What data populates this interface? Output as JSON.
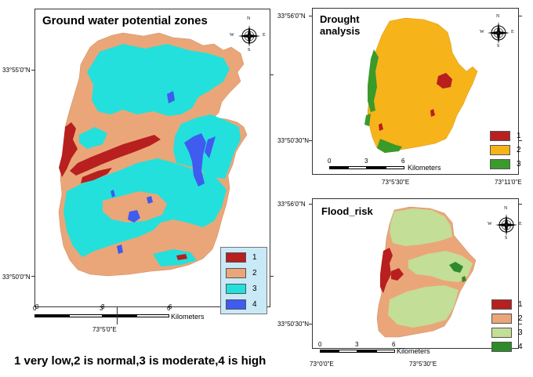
{
  "maps": {
    "groundwater": {
      "title": "Ground water potential zones",
      "coords": {
        "lat_top": "33°55'0\"N",
        "lat_bottom": "33°50'0\"N",
        "lon_bottom": "73°5'0\"E"
      },
      "scale": {
        "n0": "0",
        "n1": "3",
        "n2": "6",
        "unit": "Kilometers"
      },
      "compass": {
        "n": "N",
        "s": "S",
        "e": "E",
        "w": "W"
      },
      "legend": [
        {
          "label": "1",
          "color": "#b81f1f"
        },
        {
          "label": "2",
          "color": "#eaa678"
        },
        {
          "label": "3",
          "color": "#23e0dc"
        },
        {
          "label": "4",
          "color": "#3f5bf0"
        }
      ]
    },
    "drought": {
      "title_line1": "Drought",
      "title_line2": "analysis",
      "coords": {
        "lat_top": "33°56'0\"N",
        "lat_mid": "33°50'30\"N",
        "lon_mid": "73°5'30\"E",
        "lon_right": "73°11'0\"E"
      },
      "scale": {
        "n0": "0",
        "n1": "3",
        "n2": "6",
        "unit": "Kilometers"
      },
      "compass": {
        "n": "N",
        "s": "S",
        "e": "E",
        "w": "W"
      },
      "legend": [
        {
          "label": "1",
          "color": "#b81f1f"
        },
        {
          "label": "2",
          "color": "#f7b31a"
        },
        {
          "label": "3",
          "color": "#3a9a2a"
        }
      ]
    },
    "flood": {
      "title": "Flood_risk",
      "coords": {
        "lat_top": "33°56'0\"N",
        "lat_mid": "33°50'30\"N",
        "lon_left": "73°0'0\"E",
        "lon_mid": "73°5'30\"E"
      },
      "scale": {
        "n0": "0",
        "n1": "3",
        "n2": "6",
        "unit": "Kilometers"
      },
      "compass": {
        "n": "N",
        "s": "S",
        "e": "E",
        "w": "W"
      },
      "legend": [
        {
          "label": "1",
          "color": "#b81f1f"
        },
        {
          "label": "2",
          "color": "#eaa678"
        },
        {
          "label": "3",
          "color": "#c3de96"
        },
        {
          "label": "4",
          "color": "#2f8a2a"
        }
      ]
    }
  },
  "caption": "1 very low,2 is normal,3 is moderate,4 is high"
}
